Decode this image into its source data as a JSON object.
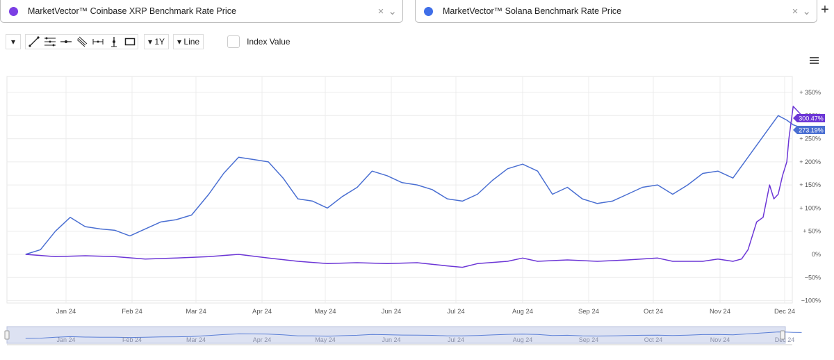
{
  "selectors": [
    {
      "label": "MarketVector™ Coinbase XRP Benchmark Rate Price",
      "color": "#7b3fe4"
    },
    {
      "label": "MarketVector™ Solana Benchmark Rate Price",
      "color": "#3f6ee8"
    }
  ],
  "toolbar": {
    "range_label": "1Y",
    "type_label": "Line",
    "index_value_label": "Index Value",
    "tools": [
      "line-tool-icon",
      "fibonacci-tool-icon",
      "horizontal-line-icon",
      "parallel-channel-icon",
      "measure-icon",
      "vertical-line-icon",
      "rectangle-icon"
    ]
  },
  "chart_data": {
    "type": "line",
    "x_ticks": [
      "Jan 24",
      "Feb 24",
      "Mar 24",
      "Apr 24",
      "May 24",
      "Jun 24",
      "Jul 24",
      "Aug 24",
      "Sep 24",
      "Oct 24",
      "Nov 24",
      "Dec 24"
    ],
    "y_ticks": [
      "+ 350%",
      "+ 300%",
      "+ 250%",
      "+ 200%",
      "+ 150%",
      "+ 100%",
      "+ 50%",
      "0%",
      "−50%",
      "−100%"
    ],
    "ylim": [
      -100,
      350
    ],
    "grid": true,
    "series": [
      {
        "name": "MarketVector™ Solana Benchmark Rate Price",
        "color": "#4a6fd2",
        "last_label": "273.19%",
        "x": [
          "Dec 13",
          "Dec 20",
          "Dec 27",
          "Jan 3",
          "Jan 10",
          "Jan 17",
          "Jan 24",
          "Jan 31",
          "Feb 7",
          "Feb 14",
          "Feb 21",
          "Feb 28",
          "Mar 7",
          "Mar 14",
          "Mar 21",
          "Mar 28",
          "Apr 4",
          "Apr 11",
          "Apr 18",
          "Apr 25",
          "May 2",
          "May 9",
          "May 16",
          "May 23",
          "May 30",
          "Jun 6",
          "Jun 13",
          "Jun 20",
          "Jun 27",
          "Jul 4",
          "Jul 11",
          "Jul 18",
          "Jul 25",
          "Aug 1",
          "Aug 8",
          "Aug 15",
          "Aug 22",
          "Aug 29",
          "Sep 5",
          "Sep 12",
          "Sep 19",
          "Sep 26",
          "Oct 3",
          "Oct 10",
          "Oct 17",
          "Oct 24",
          "Oct 31",
          "Nov 7",
          "Nov 14",
          "Nov 21",
          "Nov 28",
          "Dec 2",
          "Dec 5",
          "Dec 9"
        ],
        "values": [
          0,
          10,
          50,
          80,
          60,
          55,
          52,
          40,
          55,
          70,
          75,
          85,
          130,
          175,
          210,
          205,
          200,
          165,
          120,
          115,
          100,
          125,
          145,
          180,
          170,
          155,
          150,
          140,
          120,
          115,
          130,
          160,
          185,
          195,
          180,
          130,
          145,
          120,
          110,
          115,
          130,
          145,
          150,
          130,
          150,
          175,
          180,
          165,
          210,
          255,
          300,
          290,
          280,
          273.19
        ]
      },
      {
        "name": "MarketVector™ Coinbase XRP Benchmark Rate Price",
        "color": "#6c36d6",
        "last_label": "300.47%",
        "x": [
          "Dec 13",
          "Dec 27",
          "Jan 10",
          "Jan 24",
          "Feb 7",
          "Feb 21",
          "Mar 7",
          "Mar 21",
          "Apr 4",
          "Apr 18",
          "May 2",
          "May 16",
          "May 30",
          "Jun 13",
          "Jun 27",
          "Jul 4",
          "Jul 11",
          "Jul 25",
          "Aug 1",
          "Aug 8",
          "Aug 22",
          "Sep 5",
          "Sep 19",
          "Oct 3",
          "Oct 10",
          "Oct 24",
          "Oct 31",
          "Nov 7",
          "Nov 11",
          "Nov 14",
          "Nov 18",
          "Nov 21",
          "Nov 24",
          "Nov 26",
          "Nov 28",
          "Nov 30",
          "Dec 2",
          "Dec 3",
          "Dec 5",
          "Dec 9"
        ],
        "values": [
          0,
          -5,
          -3,
          -5,
          -10,
          -8,
          -5,
          0,
          -8,
          -15,
          -20,
          -18,
          -20,
          -18,
          -25,
          -28,
          -20,
          -15,
          -8,
          -15,
          -12,
          -15,
          -12,
          -8,
          -15,
          -15,
          -10,
          -15,
          -10,
          10,
          70,
          80,
          150,
          120,
          130,
          170,
          200,
          250,
          320,
          300.47
        ]
      }
    ],
    "navigator_ticks": [
      "Jan 24",
      "Feb 24",
      "Mar 24",
      "Apr 24",
      "May 24",
      "Jun 24",
      "Jul 24",
      "Aug 24",
      "Sep 24",
      "Oct 24",
      "Nov 24",
      "Dec 24"
    ]
  }
}
